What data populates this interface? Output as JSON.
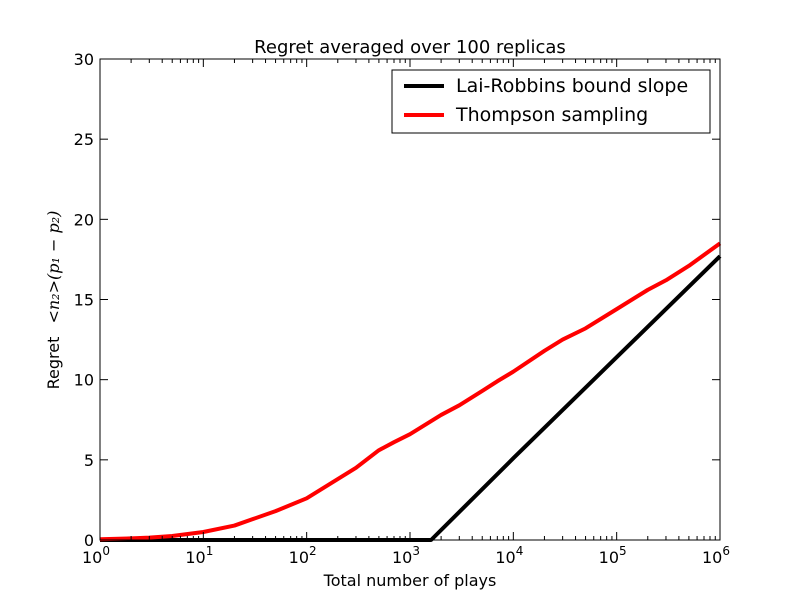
{
  "chart_data": {
    "type": "line",
    "title": "Regret averaged over 100 replicas",
    "xlabel": "Total number of plays",
    "ylabel_prefix": "Regret",
    "ylabel_math": "<n₂>(p₁ − p₂)",
    "x_scale": "log",
    "xlim": [
      1,
      1000000
    ],
    "ylim": [
      0,
      30
    ],
    "grid": false,
    "legend_position": "top-right",
    "x_ticks": [
      {
        "value": 1,
        "base": "10",
        "exp": "0"
      },
      {
        "value": 10,
        "base": "10",
        "exp": "1"
      },
      {
        "value": 100,
        "base": "10",
        "exp": "2"
      },
      {
        "value": 1000,
        "base": "10",
        "exp": "3"
      },
      {
        "value": 10000,
        "base": "10",
        "exp": "4"
      },
      {
        "value": 100000,
        "base": "10",
        "exp": "5"
      },
      {
        "value": 1000000,
        "base": "10",
        "exp": "6"
      }
    ],
    "y_ticks": [
      0,
      5,
      10,
      15,
      20,
      25,
      30
    ],
    "series": [
      {
        "name": "Lai-Robbins bound slope",
        "color": "#000000",
        "x": [
          1,
          10,
          100,
          1000,
          1600,
          10000,
          100000,
          1000000
        ],
        "y": [
          0,
          0,
          0,
          0,
          0,
          5.1,
          11.4,
          17.7
        ]
      },
      {
        "name": "Thompson sampling",
        "color": "#ff0000",
        "x": [
          1,
          2,
          3,
          5,
          10,
          20,
          30,
          50,
          100,
          200,
          300,
          500,
          700,
          1000,
          2000,
          3000,
          5000,
          7000,
          10000,
          20000,
          30000,
          50000,
          100000,
          200000,
          300000,
          500000,
          1000000
        ],
        "y": [
          0.05,
          0.1,
          0.15,
          0.25,
          0.5,
          0.9,
          1.3,
          1.8,
          2.6,
          3.8,
          4.5,
          5.6,
          6.1,
          6.6,
          7.8,
          8.4,
          9.3,
          9.9,
          10.5,
          11.8,
          12.5,
          13.2,
          14.4,
          15.6,
          16.2,
          17.1,
          18.5
        ]
      }
    ]
  }
}
